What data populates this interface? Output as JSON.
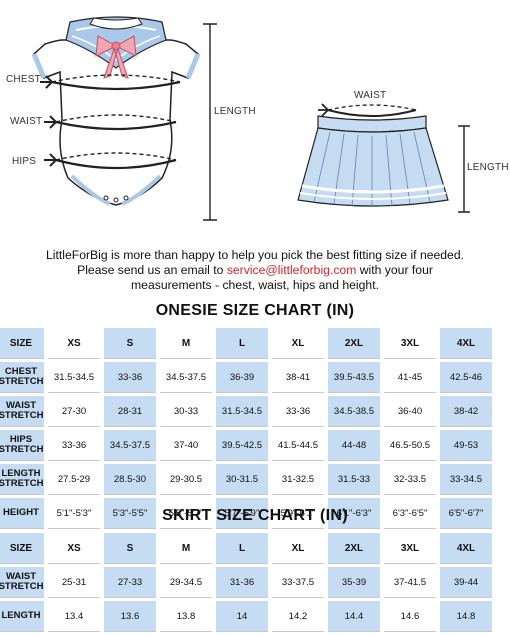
{
  "illustration": {
    "onesie_labels": {
      "chest": "CHEST",
      "waist": "WAIST",
      "hips": "HIPS",
      "length": "LENGTH"
    },
    "skirt_labels": {
      "waist": "WAIST",
      "length": "LENGTH"
    }
  },
  "intro": {
    "line1": "LittleForBig is more than happy to help you pick the best fitting size if needed.",
    "line2_pre": "Please send us an email to ",
    "email": "service@littleforbig.com",
    "line2_post": " with your four",
    "line3": "measurements - chest, waist, hips and height."
  },
  "onesie_chart": {
    "title": "ONESIE SIZE CHART (IN)",
    "header": "SIZE",
    "sizes": [
      "XS",
      "S",
      "M",
      "L",
      "XL",
      "2XL",
      "3XL",
      "4XL"
    ],
    "rows": [
      {
        "label": "CHEST STRETCH",
        "values": [
          "31.5-34.5",
          "33-36",
          "34.5-37.5",
          "36-39",
          "38-41",
          "39.5-43.5",
          "41-45",
          "42.5-46"
        ]
      },
      {
        "label": "WAIST STRETCH",
        "values": [
          "27-30",
          "28-31",
          "30-33",
          "31.5-34.5",
          "33-36",
          "34.5-38.5",
          "36-40",
          "38-42"
        ]
      },
      {
        "label": "HIPS STRETCH",
        "values": [
          "33-36",
          "34.5-37.5",
          "37-40",
          "39.5-42.5",
          "41.5-44.5",
          "44-48",
          "46.5-50.5",
          "49-53"
        ]
      },
      {
        "label": "LENGTH STRETCH",
        "values": [
          "27.5-29",
          "28.5-30",
          "29-30.5",
          "30-31.5",
          "31-32.5",
          "31.5-33",
          "32-33.5",
          "33-34.5"
        ]
      },
      {
        "label": "HEIGHT",
        "values": [
          "5'1\"-5'3\"",
          "5'3\"-5'5\"",
          "5'5\"-5'7\"",
          "5'7\"-5'9\"",
          "5'9\"-6'1\"",
          "6'1\"-6'3\"",
          "6'3\"-6'5\"",
          "6'5\"-6'7\""
        ]
      }
    ]
  },
  "skirt_chart": {
    "title": "SKIRT SIZE CHART (IN)",
    "header": "SIZE",
    "sizes": [
      "XS",
      "S",
      "M",
      "L",
      "XL",
      "2XL",
      "3XL",
      "4XL"
    ],
    "rows": [
      {
        "label": "WAIST STRETCH",
        "values": [
          "25-31",
          "27-33",
          "29-34.5",
          "31-36",
          "33-37.5",
          "35-39",
          "37-41.5",
          "39-44"
        ]
      },
      {
        "label": "LENGTH",
        "values": [
          "13.4",
          "13.6",
          "13.8",
          "14",
          "14.2",
          "14.4",
          "14.6",
          "14.8"
        ]
      }
    ]
  },
  "colors": {
    "highlight": "#c6dcf2",
    "email": "#d8232a",
    "garment_blue": "#a9c8ea"
  }
}
